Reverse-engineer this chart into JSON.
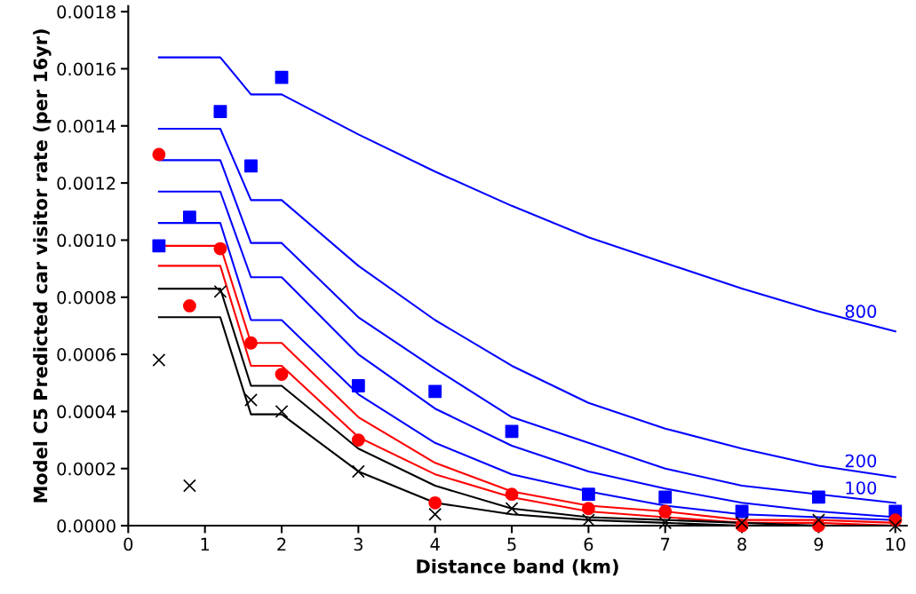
{
  "chart_data": {
    "type": "line",
    "xlabel": "Distance band (km)",
    "ylabel": "Model C5 Predicted car visitor rate (per 16yr)",
    "x": [
      0.4,
      0.8,
      1.2,
      1.6,
      2,
      3,
      4,
      5,
      6,
      7,
      8,
      9,
      10
    ],
    "xlim": [
      0,
      10.15
    ],
    "xticks": [
      0,
      1,
      2,
      3,
      4,
      5,
      6,
      7,
      8,
      9,
      10
    ],
    "ylim": [
      0,
      0.00182
    ],
    "yticks": [
      {
        "value": 0,
        "label": "0.0000"
      },
      {
        "value": 0.0002,
        "label": "0.0002"
      },
      {
        "value": 0.0004,
        "label": "0.0004"
      },
      {
        "value": 0.0006,
        "label": "0.0006"
      },
      {
        "value": 0.0008,
        "label": "0.0008"
      },
      {
        "value": 0.001,
        "label": "0.0010"
      },
      {
        "value": 0.0012,
        "label": "0.0012"
      },
      {
        "value": 0.0014,
        "label": "0.0014"
      },
      {
        "value": 0.0016,
        "label": "0.0016"
      },
      {
        "value": 0.0018,
        "label": "0.0018"
      }
    ],
    "grid": false,
    "legend": false,
    "line_style": "solid",
    "series": [
      {
        "name": "800",
        "color": "#0000ff",
        "marker": "none",
        "values": [
          0.00164,
          0.00164,
          0.00164,
          0.00151,
          0.00151,
          0.00137,
          0.00124,
          0.00112,
          0.00101,
          0.00092,
          0.00083,
          0.00075,
          0.00068
        ]
      },
      {
        "name": "200",
        "color": "#0000ff",
        "marker": "none",
        "values": [
          0.00139,
          0.00139,
          0.00139,
          0.00114,
          0.00114,
          0.00091,
          0.00072,
          0.00056,
          0.00043,
          0.00034,
          0.00027,
          0.00021,
          0.00017
        ]
      },
      {
        "name": "100",
        "color": "#0000ff",
        "marker": "none",
        "values": [
          0.00128,
          0.00128,
          0.00128,
          0.00099,
          0.00099,
          0.00073,
          0.00055,
          0.00038,
          0.00029,
          0.0002,
          0.00014,
          0.00011,
          8e-05
        ]
      },
      {
        "color": "#0000ff",
        "marker": "none",
        "values": [
          0.00117,
          0.00117,
          0.00117,
          0.00087,
          0.00087,
          0.0006,
          0.00041,
          0.00028,
          0.00019,
          0.00013,
          8e-05,
          5e-05,
          3e-05
        ]
      },
      {
        "color": "#0000ff",
        "marker": "none",
        "values": [
          0.00106,
          0.00106,
          0.00106,
          0.00072,
          0.00072,
          0.00046,
          0.00029,
          0.00018,
          0.00012,
          7e-05,
          4e-05,
          3e-05,
          2e-05
        ]
      },
      {
        "color": "#ff0000",
        "marker": "none",
        "values": [
          0.00098,
          0.00098,
          0.00098,
          0.00064,
          0.00064,
          0.00038,
          0.00022,
          0.00012,
          7e-05,
          5e-05,
          2e-05,
          2e-05,
          1e-05
        ]
      },
      {
        "color": "#ff0000",
        "marker": "none",
        "values": [
          0.00091,
          0.00091,
          0.00091,
          0.00056,
          0.00056,
          0.00031,
          0.00018,
          0.0001,
          5e-05,
          3e-05,
          1e-05,
          1e-05,
          0.0
        ]
      },
      {
        "color": "#000000",
        "marker": "none",
        "values": [
          0.00083,
          0.00083,
          0.00083,
          0.00049,
          0.00049,
          0.00027,
          0.00014,
          6e-05,
          3e-05,
          2e-05,
          1e-05,
          0.0,
          0.0
        ]
      },
      {
        "color": "#000000",
        "marker": "none",
        "values": [
          0.00073,
          0.00073,
          0.00073,
          0.00039,
          0.00039,
          0.00019,
          8e-05,
          4e-05,
          2e-05,
          1e-05,
          0.0,
          0.0,
          0.0
        ]
      },
      {
        "type": "scatter",
        "color": "#0000ff",
        "marker": "square",
        "values": [
          0.00098,
          0.00108,
          0.00145,
          0.00126,
          0.00157,
          0.00049,
          0.00047,
          0.00033,
          0.00011,
          0.0001,
          5e-05,
          0.0001,
          5e-05
        ]
      },
      {
        "type": "scatter",
        "color": "#ff0000",
        "marker": "circle",
        "values": [
          0.0013,
          0.00077,
          0.00097,
          0.00064,
          0.00053,
          0.0003,
          8e-05,
          0.00011,
          6e-05,
          5e-05,
          0.0,
          0.0,
          2e-05
        ]
      },
      {
        "type": "scatter",
        "color": "#000000",
        "marker": "cross",
        "values": [
          0.00058,
          0.00014,
          0.00082,
          0.00044,
          0.0004,
          0.00019,
          4e-05,
          6e-05,
          2e-05,
          1e-05,
          1e-05,
          2e-05,
          0.0
        ]
      }
    ]
  }
}
